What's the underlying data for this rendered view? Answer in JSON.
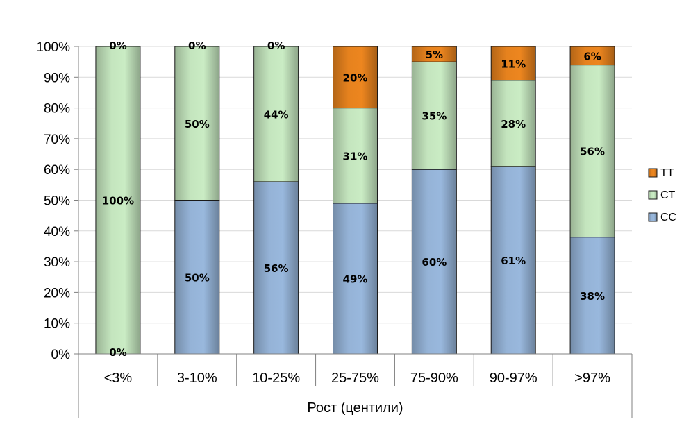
{
  "chart_data": {
    "type": "bar",
    "stacked": true,
    "percent_stacked": true,
    "title": "",
    "xlabel": "Рост  (центили)",
    "ylabel": "",
    "ylim": [
      0,
      100
    ],
    "y_ticks": [
      "0%",
      "10%",
      "20%",
      "30%",
      "40%",
      "50%",
      "60%",
      "70%",
      "80%",
      "90%",
      "100%"
    ],
    "grid": true,
    "legend_position": "right",
    "categories": [
      "<3%",
      "3-10%",
      "10-25%",
      "25-75%",
      "75-90%",
      "90-97%",
      ">97%"
    ],
    "series": [
      {
        "name": "CC",
        "color": "#95B3D7",
        "values": [
          0,
          50,
          56,
          49,
          60,
          61,
          38
        ],
        "labels": [
          "0%",
          "50%",
          "56%",
          "49%",
          "60%",
          "61%",
          "38%"
        ]
      },
      {
        "name": "CT",
        "color": "#C4E5BE",
        "values": [
          100,
          50,
          44,
          31,
          35,
          28,
          56
        ],
        "labels": [
          "100%",
          "50%",
          "44%",
          "31%",
          "35%",
          "28%",
          "56%"
        ]
      },
      {
        "name": "TT",
        "color": "#E6821E",
        "values": [
          0,
          0,
          0,
          20,
          5,
          11,
          6
        ],
        "labels": [
          "0%",
          "0%",
          "0%",
          "20%",
          "5%",
          "11%",
          "6%"
        ]
      }
    ],
    "legend_order": [
      "TT",
      "CT",
      "CC"
    ]
  }
}
